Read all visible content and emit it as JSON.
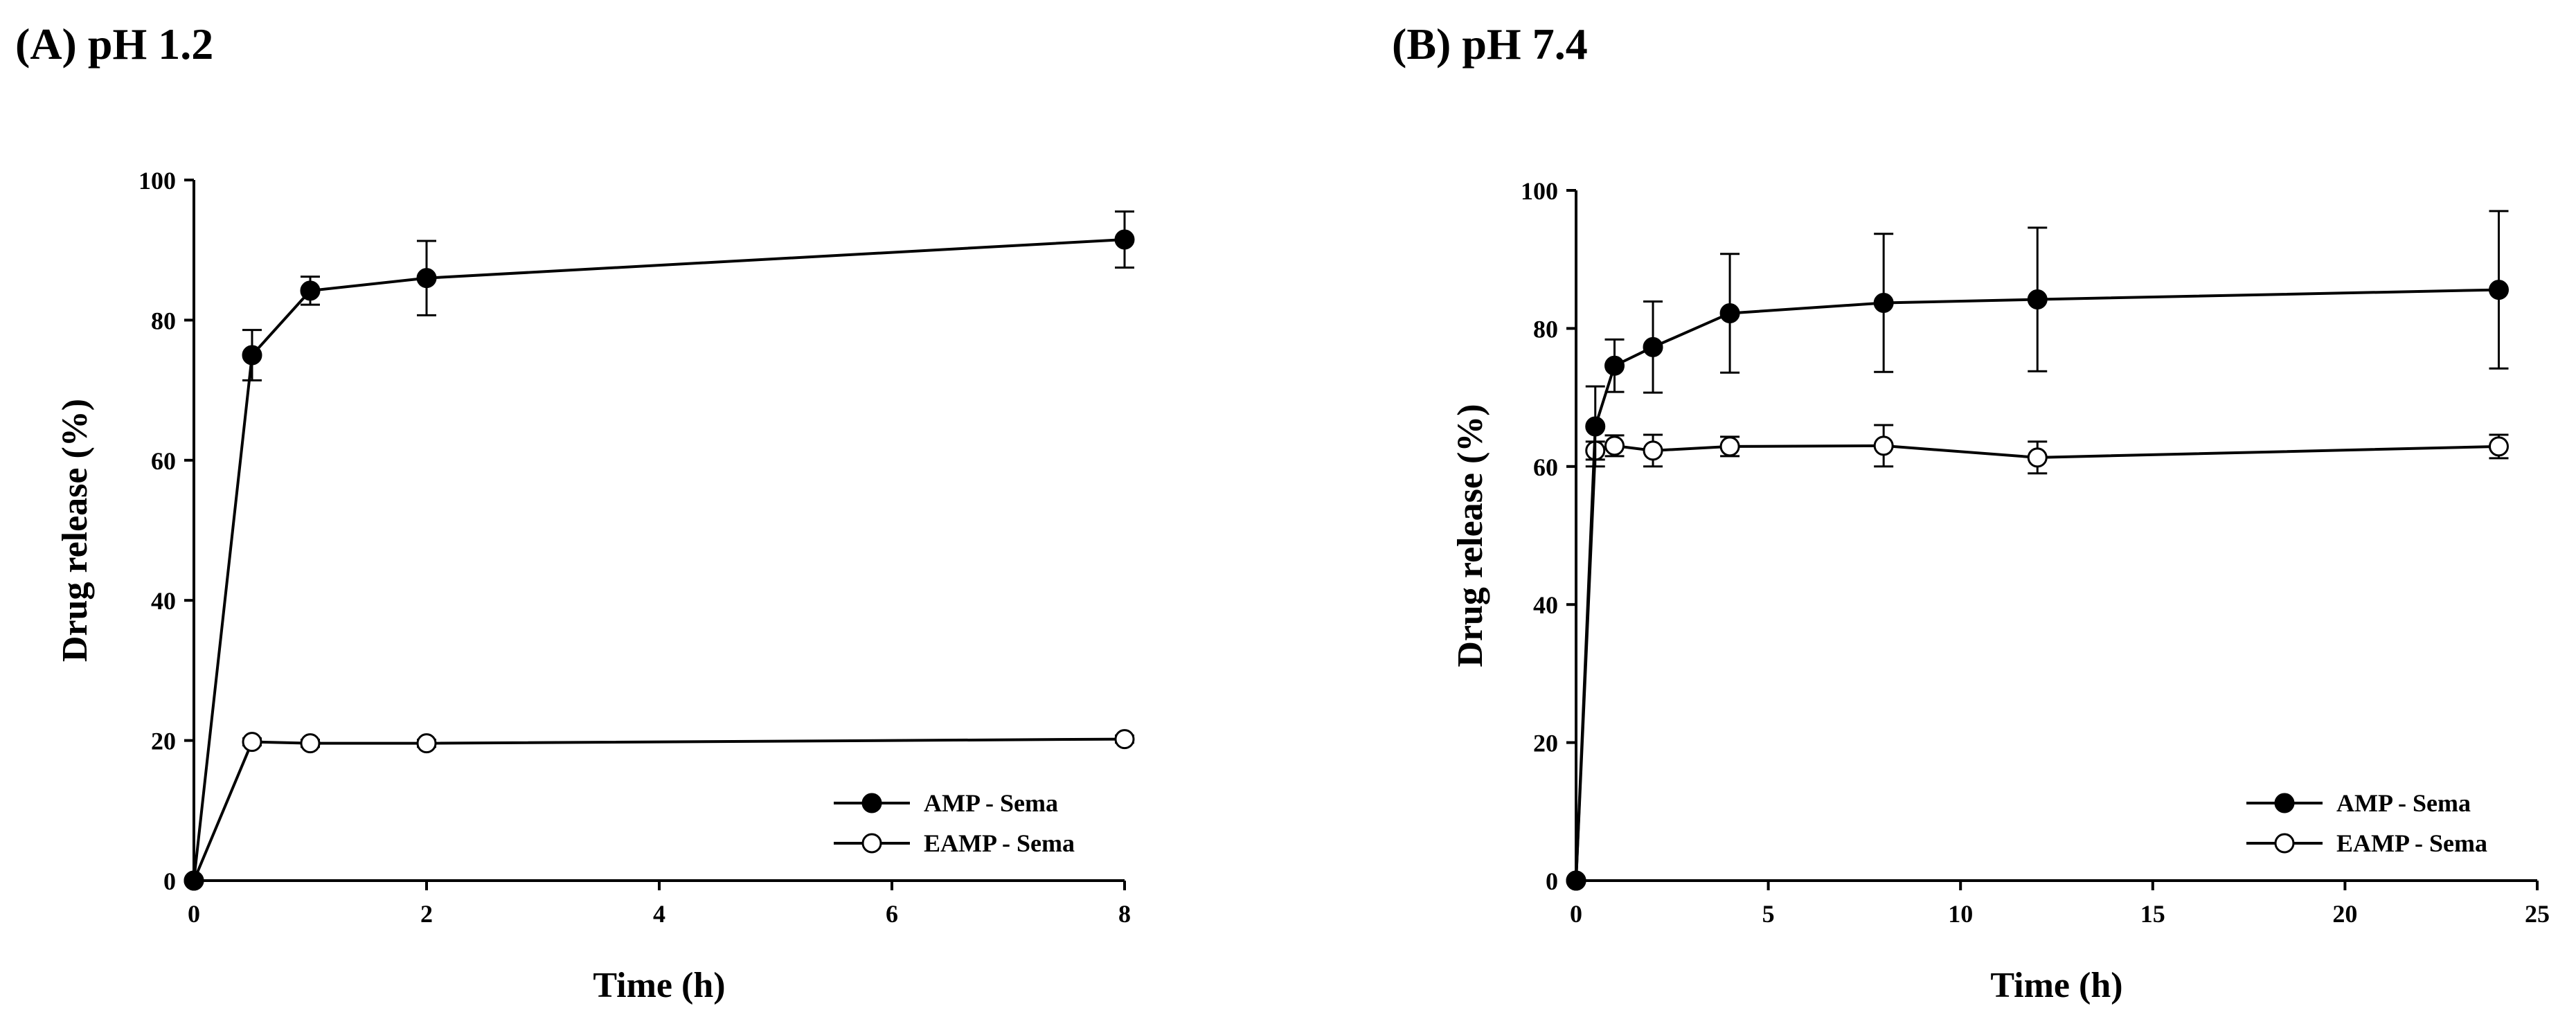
{
  "chart_data": [
    {
      "type": "line",
      "title": "(A) pH 1.2",
      "xlabel": "Time (h)",
      "ylabel": "Drug release (%)",
      "xlim": [
        0,
        8
      ],
      "ylim": [
        0,
        100
      ],
      "xticks": [
        0,
        2,
        4,
        6,
        8
      ],
      "yticks": [
        0,
        20,
        40,
        60,
        80,
        100
      ],
      "legend_position": "bottom-right",
      "series": [
        {
          "name": "AMP - Sema",
          "marker": "filled-circle",
          "x": [
            0,
            0.5,
            1,
            2,
            8
          ],
          "y": [
            0,
            75.0,
            84.2,
            86.0,
            91.5
          ],
          "error": [
            0,
            3.6,
            2.0,
            5.3,
            4.0
          ]
        },
        {
          "name": "EAMP - Sema",
          "marker": "open-circle",
          "x": [
            0,
            0.5,
            1,
            2,
            8
          ],
          "y": [
            0,
            19.8,
            19.6,
            19.6,
            20.2
          ],
          "error": [
            0,
            0.5,
            0.5,
            0.5,
            0.5
          ]
        }
      ]
    },
    {
      "type": "line",
      "title": "(B) pH 7.4",
      "xlabel": "Time (h)",
      "ylabel": "Drug release (%)",
      "xlim": [
        0,
        25
      ],
      "ylim": [
        0,
        100
      ],
      "xticks": [
        0,
        5,
        10,
        15,
        20,
        25
      ],
      "yticks": [
        0,
        20,
        40,
        60,
        80,
        100
      ],
      "legend_position": "bottom-right",
      "series": [
        {
          "name": "AMP - Sema",
          "marker": "filled-circle",
          "x": [
            0,
            0.5,
            1,
            2,
            4,
            8,
            12,
            24
          ],
          "y": [
            0,
            65.8,
            74.6,
            77.3,
            82.2,
            83.7,
            84.2,
            85.6
          ],
          "error": [
            0,
            5.8,
            3.8,
            6.6,
            8.6,
            10.0,
            10.4,
            11.4
          ]
        },
        {
          "name": "EAMP - Sema",
          "marker": "open-circle",
          "x": [
            0,
            0.5,
            1,
            2,
            4,
            8,
            12,
            24
          ],
          "y": [
            0,
            62.3,
            63.0,
            62.3,
            62.9,
            63.0,
            61.3,
            62.9
          ],
          "error": [
            0,
            1.3,
            1.5,
            2.3,
            1.4,
            3.0,
            2.3,
            1.7
          ]
        }
      ]
    }
  ]
}
